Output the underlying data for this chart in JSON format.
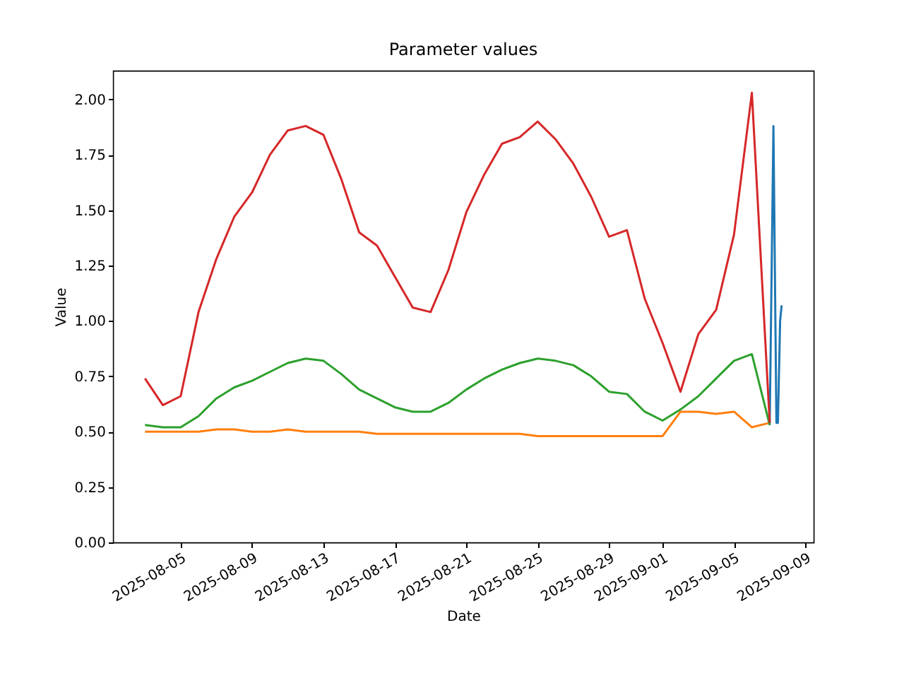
{
  "chart_data": {
    "type": "line",
    "title": "Parameter values",
    "xlabel": "Date",
    "ylabel": "Value",
    "x": [
      "2025-08-03",
      "2025-08-04",
      "2025-08-05",
      "2025-08-06",
      "2025-08-07",
      "2025-08-08",
      "2025-08-09",
      "2025-08-10",
      "2025-08-11",
      "2025-08-12",
      "2025-08-13",
      "2025-08-14",
      "2025-08-15",
      "2025-08-16",
      "2025-08-17",
      "2025-08-18",
      "2025-08-19",
      "2025-08-20",
      "2025-08-21",
      "2025-08-22",
      "2025-08-23",
      "2025-08-24",
      "2025-08-25",
      "2025-08-26",
      "2025-08-27",
      "2025-08-28",
      "2025-08-29",
      "2025-08-30",
      "2025-08-31",
      "2025-09-01",
      "2025-09-02",
      "2025-09-03",
      "2025-09-04",
      "2025-09-05",
      "2025-09-06",
      "2025-09-07"
    ],
    "series": [
      {
        "color": "#1f77b4",
        "x": [
          "2025-09-07T00:00",
          "2025-09-07T05:00",
          "2025-09-07T09:00",
          "2025-09-07T11:00",
          "2025-09-07T14:00",
          "2025-09-07T16:00"
        ],
        "values": [
          0.53,
          1.88,
          0.54,
          0.54,
          1.0,
          1.07
        ]
      },
      {
        "color": "#ff7f0e",
        "values": [
          0.5,
          0.5,
          0.5,
          0.5,
          0.51,
          0.51,
          0.5,
          0.5,
          0.51,
          0.5,
          0.5,
          0.5,
          0.5,
          0.49,
          0.49,
          0.49,
          0.49,
          0.49,
          0.49,
          0.49,
          0.49,
          0.49,
          0.48,
          0.48,
          0.48,
          0.48,
          0.48,
          0.48,
          0.48,
          0.48,
          0.59,
          0.59,
          0.58,
          0.59,
          0.52,
          0.54
        ]
      },
      {
        "color": "#2ca02c",
        "values": [
          0.53,
          0.52,
          0.52,
          0.57,
          0.65,
          0.7,
          0.73,
          0.77,
          0.81,
          0.83,
          0.82,
          0.76,
          0.69,
          0.65,
          0.61,
          0.59,
          0.59,
          0.63,
          0.69,
          0.74,
          0.78,
          0.81,
          0.83,
          0.82,
          0.8,
          0.75,
          0.68,
          0.67,
          0.59,
          0.55,
          0.6,
          0.66,
          0.74,
          0.82,
          0.85,
          0.53
        ]
      },
      {
        "color": "#d62728",
        "values": [
          0.74,
          0.62,
          0.66,
          1.04,
          1.28,
          1.47,
          1.58,
          1.75,
          1.86,
          1.88,
          1.84,
          1.64,
          1.4,
          1.34,
          1.2,
          1.06,
          1.04,
          1.23,
          1.49,
          1.66,
          1.8,
          1.83,
          1.9,
          1.82,
          1.71,
          1.56,
          1.38,
          1.41,
          1.1,
          0.9,
          0.68,
          0.94,
          1.05,
          1.39,
          2.03,
          0.54
        ]
      }
    ],
    "xlim": [
      "2025-08-01T05:00",
      "2025-09-09T11:00"
    ],
    "xticks": [
      "2025-08-05",
      "2025-08-09",
      "2025-08-13",
      "2025-08-17",
      "2025-08-21",
      "2025-08-25",
      "2025-08-29",
      "2025-09-01",
      "2025-09-05",
      "2025-09-09"
    ],
    "ylim": [
      0,
      2.13
    ],
    "yticks": [
      {
        "value": 0,
        "label": "0.00"
      },
      {
        "value": 0.25,
        "label": "0.25"
      },
      {
        "value": 0.5,
        "label": "0.50"
      },
      {
        "value": 0.75,
        "label": "0.75"
      },
      {
        "value": 1,
        "label": "1.00"
      },
      {
        "value": 1.25,
        "label": "1.25"
      },
      {
        "value": 1.5,
        "label": "1.50"
      },
      {
        "value": 1.75,
        "label": "1.75"
      },
      {
        "value": 2,
        "label": "2.00"
      }
    ],
    "grid": false,
    "legend": false
  }
}
